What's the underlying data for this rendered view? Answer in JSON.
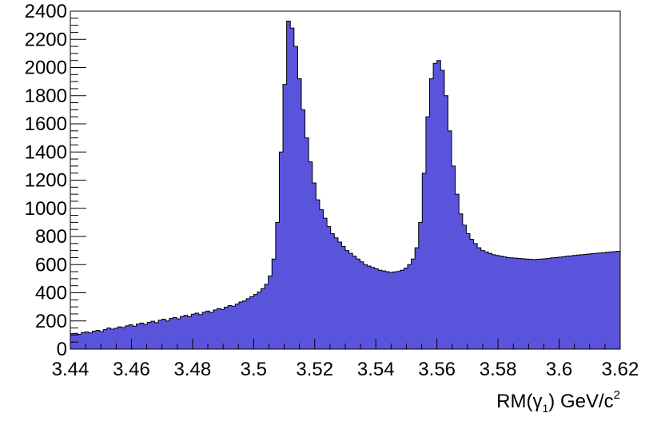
{
  "chart_data": {
    "type": "histogram",
    "xlabel": "RM(γ₁) GeV/c²",
    "xlabel_parts": {
      "base": "RM(γ",
      "sub": "1",
      "mid": ") GeV/c",
      "sup": "2"
    },
    "ylabel": "",
    "xlim": [
      3.44,
      3.62
    ],
    "ylim": [
      0,
      2400
    ],
    "x_ticks": [
      3.44,
      3.46,
      3.48,
      3.5,
      3.52,
      3.54,
      3.56,
      3.58,
      3.6,
      3.62
    ],
    "x_tick_labels": [
      "3.44",
      "3.46",
      "3.48",
      "3.5",
      "3.52",
      "3.54",
      "3.56",
      "3.58",
      "3.6",
      "3.62"
    ],
    "y_ticks": [
      0,
      200,
      400,
      600,
      800,
      1000,
      1200,
      1400,
      1600,
      1800,
      2000,
      2200,
      2400
    ],
    "y_tick_labels": [
      "0",
      "200",
      "400",
      "600",
      "800",
      "1000",
      "1200",
      "1400",
      "1600",
      "1800",
      "2000",
      "2200",
      "2400"
    ],
    "grid": false,
    "legend": "none",
    "fill_color": "#5a54dd",
    "line_color": "#000000",
    "bin_width": 0.0012,
    "bin_start": 3.44,
    "values": [
      110,
      112,
      105,
      118,
      122,
      115,
      128,
      133,
      125,
      138,
      150,
      142,
      148,
      158,
      153,
      165,
      172,
      163,
      178,
      185,
      175,
      190,
      198,
      188,
      205,
      213,
      200,
      218,
      225,
      215,
      232,
      240,
      230,
      248,
      255,
      245,
      262,
      270,
      260,
      278,
      288,
      282,
      298,
      310,
      305,
      320,
      335,
      342,
      358,
      372,
      388,
      405,
      430,
      460,
      520,
      640,
      900,
      1400,
      1880,
      2330,
      2280,
      2150,
      1920,
      1700,
      1500,
      1330,
      1180,
      1060,
      990,
      930,
      870,
      820,
      790,
      760,
      730,
      700,
      680,
      660,
      640,
      620,
      600,
      590,
      580,
      570,
      560,
      555,
      550,
      545,
      548,
      552,
      560,
      575,
      600,
      640,
      720,
      900,
      1250,
      1650,
      1920,
      2030,
      2050,
      1980,
      1800,
      1550,
      1300,
      1100,
      960,
      880,
      820,
      780,
      750,
      720,
      700,
      690,
      680,
      670,
      665,
      660,
      655,
      650,
      648,
      646,
      644,
      642,
      640,
      638,
      636,
      638,
      640,
      642,
      645,
      648,
      650,
      653,
      656,
      660,
      662,
      665,
      668,
      670,
      672,
      675,
      678,
      680,
      682,
      685,
      688,
      690,
      692,
      695
    ]
  }
}
